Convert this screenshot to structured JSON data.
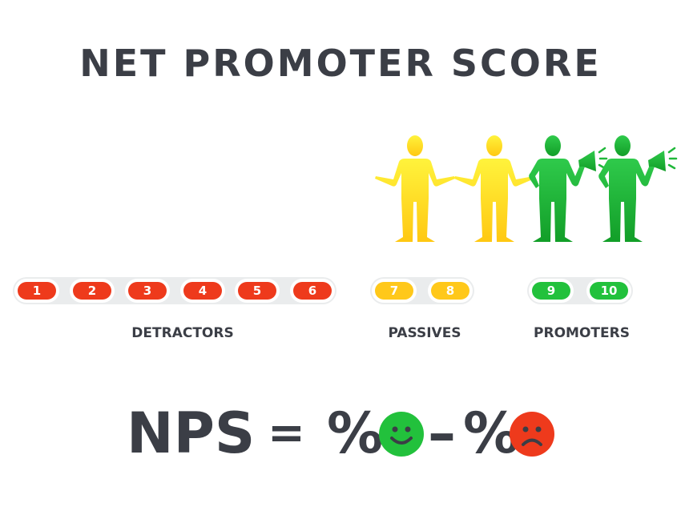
{
  "title": "NET PROMOTER SCORE",
  "colors": {
    "detractor": "#ee3a1c",
    "passive": "#ffc81a",
    "promoter": "#22c13c",
    "text": "#3b3e46",
    "ring": "#eaeced"
  },
  "groups": [
    {
      "label": "DETRACTORS",
      "pose": "hands-on-hips",
      "scores": [
        "1",
        "2",
        "3",
        "4",
        "5",
        "6"
      ]
    },
    {
      "label": "PASSIVES",
      "pose": "shrug",
      "scores": [
        "7",
        "8"
      ]
    },
    {
      "label": "PROMOTERS",
      "pose": "megaphone",
      "scores": [
        "9",
        "10"
      ]
    }
  ],
  "formula": {
    "lhs": "NPS",
    "eq": "=",
    "pct1": "%",
    "minus": "–",
    "pct2": "%",
    "icons": [
      "happy-face-icon",
      "sad-face-icon"
    ]
  }
}
